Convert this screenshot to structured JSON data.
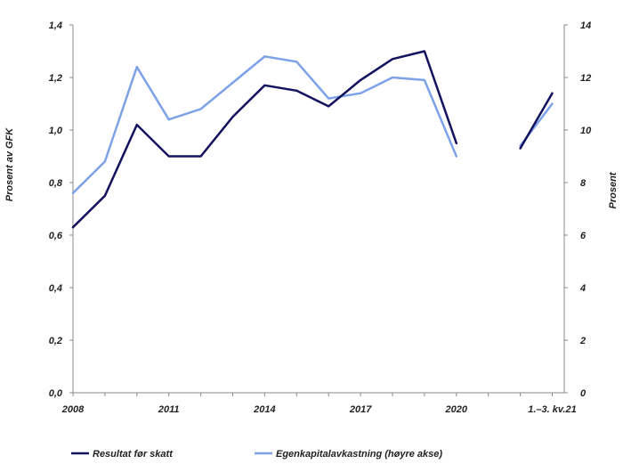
{
  "chart_data": {
    "type": "line",
    "title": "",
    "ylabel_left": "Prosent av GFK",
    "ylabel_right": "Prosent",
    "left_ylim": [
      0,
      1.4
    ],
    "right_ylim": [
      0,
      14
    ],
    "left_ticks": [
      "0,0",
      "0,2",
      "0,4",
      "0,6",
      "0,8",
      "1,0",
      "1,2",
      "1,4"
    ],
    "right_ticks": [
      "0",
      "2",
      "4",
      "6",
      "8",
      "10",
      "12",
      "14"
    ],
    "x_tick_labels": [
      "2008",
      "2011",
      "2014",
      "2017",
      "2020",
      "1.–3. kv.21"
    ],
    "x_tick_positions": [
      0,
      3,
      6,
      9,
      12,
      15
    ],
    "x_range": [
      0,
      15.5
    ],
    "grid": false,
    "legend_position": "bottom",
    "series": [
      {
        "name": "Resultat før skatt",
        "axis": "left",
        "color": "#13125e",
        "segments": [
          {
            "x": [
              0,
              1,
              2,
              3,
              4,
              5,
              6,
              7,
              8,
              9,
              10,
              11,
              12
            ],
            "values": [
              0.63,
              0.75,
              1.02,
              0.9,
              0.9,
              1.05,
              1.17,
              1.15,
              1.09,
              1.19,
              1.27,
              1.3,
              0.95
            ]
          },
          {
            "x": [
              14,
              15
            ],
            "values": [
              0.93,
              1.14
            ]
          }
        ]
      },
      {
        "name": "Egenkapitalavkastning (høyre akse)",
        "axis": "right",
        "color": "#7da2e8",
        "segments": [
          {
            "x": [
              0,
              1,
              2,
              3,
              4,
              5,
              6,
              7,
              8,
              9,
              10,
              11,
              12
            ],
            "values": [
              7.6,
              8.8,
              12.4,
              10.4,
              10.8,
              11.8,
              12.8,
              12.6,
              11.2,
              11.4,
              12.0,
              11.9,
              9.0
            ]
          },
          {
            "x": [
              14,
              15
            ],
            "values": [
              9.4,
              11.0
            ]
          }
        ]
      }
    ]
  }
}
